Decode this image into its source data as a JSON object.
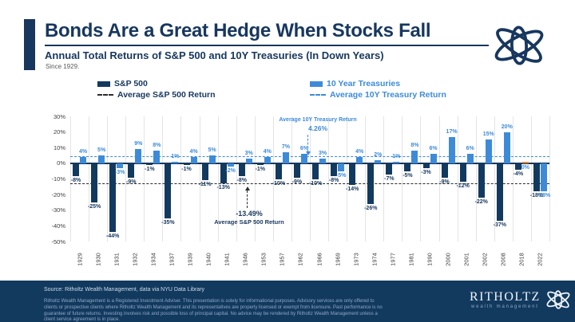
{
  "header": {
    "title": "Bonds Are a Great Hedge When Stocks Fall",
    "subtitle": "Annual Total Returns of S&P 500 and 10Y Treasuries (In Down Years)",
    "since": "Since 1929."
  },
  "legend": {
    "sp500": "S&P 500",
    "sp500_avg": "Average S&P 500 Return",
    "treasury": "10 Year Treasuries",
    "treasury_avg": "Average 10Y Treasury Return"
  },
  "chart_data": {
    "type": "bar",
    "categories": [
      "1929",
      "1930",
      "1931",
      "1932",
      "1934",
      "1937",
      "1939",
      "1940",
      "1941",
      "1946",
      "1953",
      "1957",
      "1962",
      "1966",
      "1969",
      "1973",
      "1974",
      "1977",
      "1981",
      "1990",
      "2000",
      "2001",
      "2002",
      "2008",
      "2018",
      "2022"
    ],
    "series": [
      {
        "name": "S&P 500",
        "color": "#123a5f",
        "values": [
          -8,
          -25,
          -44,
          -9,
          -1,
          -35,
          -1,
          -11,
          -13,
          -8,
          -1,
          -10,
          -9,
          -10,
          -8,
          -14,
          -26,
          -7,
          -5,
          -3,
          -9,
          -12,
          -22,
          -37,
          -4,
          -18
        ]
      },
      {
        "name": "10 Year Treasuries",
        "color": "#3d8bd8",
        "values": [
          4,
          5,
          -3,
          9,
          8,
          1,
          4,
          5,
          -2,
          3,
          4,
          7,
          6,
          3,
          -5,
          4,
          2,
          1,
          8,
          6,
          17,
          6,
          15,
          20,
          0,
          -18
        ]
      }
    ],
    "ylim": [
      -50,
      30
    ],
    "yticks": [
      "30%",
      "20%",
      "10%",
      "0%",
      "-10%",
      "-20%",
      "-30%",
      "-40%",
      "-50%"
    ],
    "ytick_values": [
      30,
      20,
      10,
      0,
      -10,
      -20,
      -30,
      -40,
      -50
    ],
    "grid": true,
    "legend_position": "top",
    "avg_sp500": -13.49,
    "avg_treasury": 4.26,
    "annotations": {
      "treasury_line1": "Average 10Y Treasury Return",
      "treasury_line2": "4.26%",
      "sp500_line1": "-13.49%",
      "sp500_line2": "Average S&P 500 Return"
    },
    "zero_bar_color": "#e8862d"
  },
  "footer": {
    "source": "Source: Ritholtz Wealth Management, data via NYU Data Library",
    "disclaimer": "Ritholtz Wealth Management is a Registered Investment Adviser. This presentation is solely for informational purposes. Advisory services are only offered to clients or prospective clients where Ritholtz Wealth Management and its representatives are properly licensed or exempt from licensure. Past performance is no guarantee of future returns. Investing involves risk and possible loss of principal capital. No advice may be rendered by Ritholtz Wealth Management unless a client service agreement is in place.",
    "logo_name": "RITHOLTZ",
    "logo_sub": "wealth management"
  },
  "colors": {
    "navy": "#17375e",
    "blue": "#3d8bd8",
    "orange": "#e8862d",
    "footer_bg": "#12395e",
    "gridline": "#e4e4e4"
  }
}
